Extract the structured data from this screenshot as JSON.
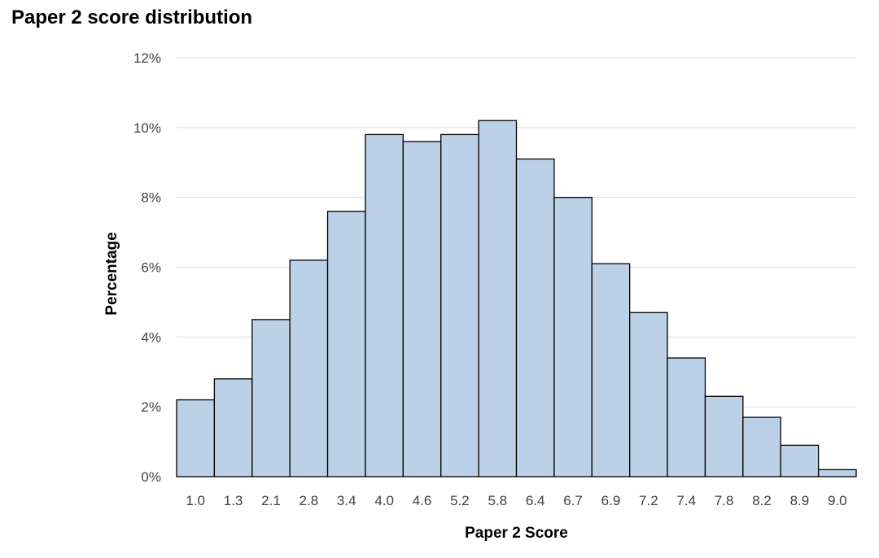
{
  "chart_data": {
    "type": "bar",
    "title": "Paper 2 score distribution",
    "xlabel": "Paper 2 Score",
    "ylabel": "Percentage",
    "categories": [
      "1.0",
      "1.3",
      "2.1",
      "2.8",
      "3.4",
      "4.0",
      "4.6",
      "5.2",
      "5.8",
      "6.4",
      "6.7",
      "6.9",
      "7.2",
      "7.4",
      "7.8",
      "8.2",
      "8.9",
      "9.0"
    ],
    "values": [
      2.2,
      2.8,
      4.5,
      6.2,
      7.6,
      9.8,
      9.6,
      9.8,
      10.2,
      9.1,
      8.0,
      6.1,
      4.7,
      3.4,
      2.3,
      1.7,
      0.9,
      0.2
    ],
    "ylim": [
      0,
      12
    ],
    "yticks": [
      0,
      2,
      4,
      6,
      8,
      10,
      12
    ],
    "ytick_labels": [
      "0%",
      "2%",
      "4%",
      "6%",
      "8%",
      "10%",
      "12%"
    ],
    "grid": true,
    "bar_fill": "#bcd0e8",
    "bar_stroke": "#000000",
    "grid_color": "#d9d9d9"
  }
}
